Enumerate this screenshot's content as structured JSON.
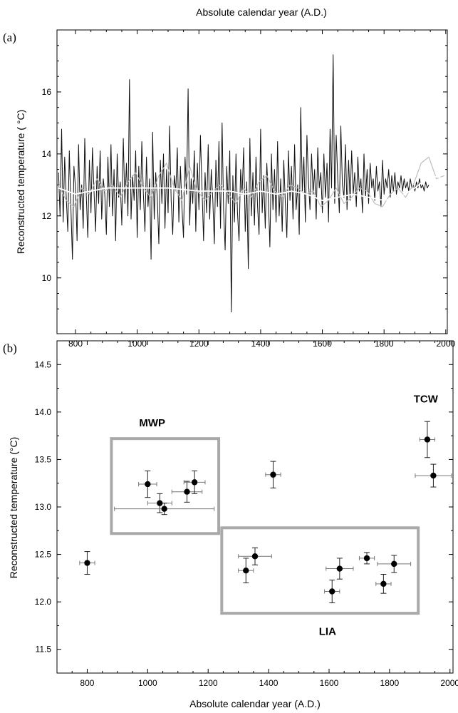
{
  "top_xlabel": "Absolute calendar year (A.D.)",
  "chart_data": [
    {
      "panel": "(a)",
      "type": "line",
      "ylabel": "Reconstructed temperature ( °C)",
      "xlim": [
        740,
        2005
      ],
      "ylim": [
        8.2,
        18
      ],
      "xticks": [
        800,
        1000,
        1200,
        1400,
        1600,
        1800,
        2000
      ],
      "yticks": [
        10,
        12,
        14,
        16
      ],
      "series": [
        {
          "role": "annual reconstruction (black)",
          "color": "#111111",
          "x_start": 745,
          "x_end": 2000,
          "x_step": 5,
          "values": [
            13.4,
            12.0,
            14.8,
            11.8,
            13.9,
            12.6,
            11.5,
            14.1,
            12.3,
            10.6,
            13.6,
            12.9,
            11.2,
            14.3,
            12.2,
            13.0,
            11.6,
            14.5,
            12.6,
            11.3,
            13.8,
            12.1,
            14.2,
            12.8,
            11.5,
            13.6,
            12.4,
            14.1,
            11.9,
            13.2,
            12.7,
            11.4,
            13.9,
            12.3,
            14.3,
            12.0,
            13.5,
            11.2,
            14.0,
            12.6,
            13.1,
            11.7,
            14.5,
            12.4,
            13.7,
            12.0,
            16.4,
            11.9,
            13.3,
            12.5,
            14.1,
            11.3,
            13.6,
            12.2,
            14.4,
            12.7,
            11.5,
            13.9,
            12.3,
            13.2,
            10.6,
            14.7,
            11.9,
            13.4,
            12.6,
            11.1,
            13.8,
            12.4,
            14.0,
            11.6,
            13.5,
            12.1,
            14.9,
            12.5,
            11.4,
            13.3,
            12.8,
            14.2,
            11.8,
            13.6,
            12.3,
            11.3,
            13.9,
            12.7,
            16.1,
            11.7,
            13.2,
            12.4,
            14.1,
            11.5,
            13.7,
            12.2,
            14.6,
            12.9,
            11.2,
            13.4,
            12.1,
            14.3,
            11.9,
            13.5,
            12.5,
            11.1,
            13.8,
            12.3,
            14.4,
            11.6,
            15.0,
            12.2,
            10.9,
            13.6,
            12.4,
            14.1,
            8.9,
            13.3,
            11.8,
            14.0,
            12.1,
            11.2,
            13.5,
            12.7,
            14.2,
            11.5,
            13.1,
            10.3,
            14.5,
            12.0,
            13.4,
            11.7,
            13.9,
            12.3,
            11.4,
            14.8,
            12.1,
            13.3,
            11.6,
            13.7,
            12.6,
            11.0,
            14.0,
            12.2,
            13.5,
            11.8,
            14.4,
            12.0,
            13.2,
            11.5,
            13.8,
            12.4,
            11.3,
            14.1,
            12.5,
            13.6,
            11.9,
            14.3,
            12.2,
            13.0,
            11.4,
            15.5,
            12.8,
            13.9,
            11.8,
            14.6,
            13.1,
            12.2,
            14.0,
            12.7,
            13.5,
            11.9,
            14.2,
            12.9,
            13.4,
            12.1,
            14.0,
            12.6,
            13.7,
            11.8,
            14.8,
            12.9,
            17.2,
            12.4,
            14.6,
            13.2,
            12.1,
            14.9,
            13.0,
            12.6,
            14.3,
            12.2,
            13.8,
            12.5,
            14.1,
            12.7,
            13.4,
            12.3,
            13.9,
            12.8,
            13.2,
            12.1,
            14.0,
            12.6,
            13.5,
            12.4,
            13.7,
            12.9,
            13.2,
            12.5,
            13.6,
            12.8,
            13.1,
            12.3,
            13.8,
            12.7,
            13.2,
            12.9,
            13.5,
            12.6,
            13.3,
            12.8,
            13.4,
            12.7,
            13.1,
            12.9,
            13.3,
            12.8,
            13.2,
            12.9,
            13.1,
            12.8,
            13.2,
            12.9,
            13.0,
            12.8,
            13.1,
            12.9,
            13.2,
            12.9,
            13.0,
            12.8,
            13.1,
            12.9,
            13.0
          ]
        },
        {
          "role": "short smoothing (grey)",
          "color": "#bdbdbd",
          "x": [
            745,
            770,
            795,
            820,
            845,
            870,
            895,
            920,
            945,
            970,
            995,
            1020,
            1045,
            1070,
            1095,
            1120,
            1145,
            1170,
            1195,
            1220,
            1245,
            1270,
            1295,
            1320,
            1345,
            1370,
            1395,
            1420,
            1445,
            1470,
            1495,
            1520,
            1545,
            1570,
            1595,
            1620,
            1645,
            1670,
            1695,
            1720,
            1745,
            1770,
            1795,
            1820,
            1845,
            1870,
            1895,
            1920,
            1945,
            1970,
            1995
          ],
          "y": [
            13.0,
            12.5,
            12.3,
            12.9,
            12.7,
            13.2,
            12.8,
            13.0,
            12.6,
            13.1,
            13.4,
            12.9,
            12.6,
            13.3,
            13.7,
            12.9,
            12.5,
            13.6,
            12.8,
            12.5,
            12.8,
            13.0,
            12.7,
            12.4,
            12.9,
            12.6,
            13.1,
            13.3,
            12.8,
            12.6,
            13.0,
            12.9,
            12.7,
            12.8,
            12.3,
            12.5,
            12.9,
            12.4,
            12.6,
            12.9,
            12.8,
            12.4,
            12.3,
            12.7,
            12.9,
            12.6,
            13.0,
            13.7,
            13.9,
            13.2,
            13.3
          ]
        },
        {
          "role": "long smoothing (white)",
          "color": "#ffffff",
          "x": [
            745,
            800,
            900,
            1000,
            1100,
            1200,
            1300,
            1350,
            1400,
            1450,
            1500,
            1550,
            1600,
            1650,
            1700,
            1750,
            1800,
            1850,
            1900,
            1950,
            2000
          ],
          "y": [
            12.9,
            12.7,
            12.9,
            12.9,
            12.9,
            12.8,
            12.8,
            12.7,
            12.8,
            12.7,
            12.8,
            12.7,
            12.5,
            12.6,
            12.7,
            12.6,
            12.5,
            12.6,
            12.9,
            13.3,
            13.2
          ]
        }
      ]
    },
    {
      "panel": "(b)",
      "type": "scatter",
      "xlabel": "Absolute calendar year (A.D.)",
      "ylabel": "Reconstructed temperature (°C)",
      "xlim": [
        700,
        2010
      ],
      "ylim": [
        11.25,
        14.75
      ],
      "xticks": [
        800,
        1000,
        1200,
        1400,
        1600,
        1800,
        2000
      ],
      "yticks": [
        11.5,
        12.0,
        12.5,
        13.0,
        13.5,
        14.0,
        14.5
      ],
      "ytick_labels": [
        "11.5",
        "12.0",
        "12.5",
        "13.0",
        "13.5",
        "14.0",
        "14.5"
      ],
      "points": [
        {
          "x": 800,
          "y": 12.41,
          "xerr": 25,
          "yerr": 0.12
        },
        {
          "x": 1000,
          "y": 13.24,
          "xerr": 30,
          "yerr": 0.14
        },
        {
          "x": 1040,
          "y": 13.04,
          "xerr": 40,
          "yerr": 0.1
        },
        {
          "x": 1055,
          "y": 12.98,
          "xerr": 165,
          "yerr": 0.06
        },
        {
          "x": 1130,
          "y": 13.16,
          "xerr": 50,
          "yerr": 0.11
        },
        {
          "x": 1155,
          "y": 13.26,
          "xerr": 35,
          "yerr": 0.12
        },
        {
          "x": 1325,
          "y": 12.33,
          "xerr": 25,
          "yerr": 0.13
        },
        {
          "x": 1355,
          "y": 12.48,
          "xerr": 55,
          "yerr": 0.09
        },
        {
          "x": 1415,
          "y": 13.34,
          "xerr": 25,
          "yerr": 0.14
        },
        {
          "x": 1610,
          "y": 12.11,
          "xerr": 25,
          "yerr": 0.12
        },
        {
          "x": 1635,
          "y": 12.35,
          "xerr": 45,
          "yerr": 0.11
        },
        {
          "x": 1725,
          "y": 12.46,
          "xerr": 25,
          "yerr": 0.06
        },
        {
          "x": 1780,
          "y": 12.19,
          "xerr": 25,
          "yerr": 0.1
        },
        {
          "x": 1815,
          "y": 12.4,
          "xerr": 55,
          "yerr": 0.09
        },
        {
          "x": 1925,
          "y": 13.71,
          "xerr": 25,
          "yerr": 0.19
        },
        {
          "x": 1945,
          "y": 13.33,
          "xerr": 60,
          "yerr": 0.12
        }
      ],
      "regions": [
        {
          "label": "MWP",
          "x0": 880,
          "x1": 1235,
          "y0": 12.72,
          "y1": 13.72,
          "label_x": 1015,
          "label_y": 13.85
        },
        {
          "label": "LIA",
          "x0": 1245,
          "x1": 1895,
          "y0": 11.88,
          "y1": 12.78,
          "label_x": 1595,
          "label_y": 11.65
        },
        {
          "label": "TCW",
          "x0": null,
          "x1": null,
          "y0": null,
          "y1": null,
          "label_x": 1920,
          "label_y": 14.1
        }
      ]
    }
  ]
}
